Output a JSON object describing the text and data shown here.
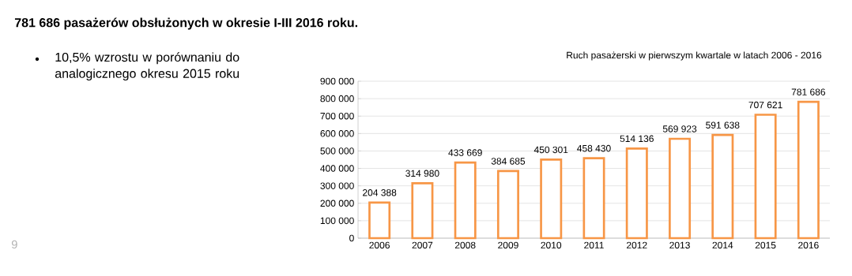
{
  "chart_data": {
    "type": "bar",
    "title": "781 686 pasażerów obsłużonych w okresie I-III 2016 roku.",
    "subtitle": "Ruch pasażerski w pierwszym kwartale w latach 2006 - 2016",
    "annotations": [
      "10,5% wzrostu w porównaniu do analogicznego okresu 2015 roku",
      "9"
    ],
    "categories": [
      "2006",
      "2007",
      "2008",
      "2009",
      "2010",
      "2011",
      "2012",
      "2013",
      "2014",
      "2015",
      "2016"
    ],
    "values": [
      204388,
      314980,
      433669,
      384685,
      450301,
      458430,
      514136,
      569923,
      591638,
      707621,
      781686
    ],
    "value_labels": [
      "204 388",
      "314 980",
      "433 669",
      "384 685",
      "450 301",
      "458 430",
      "514 136",
      "569 923",
      "591 638",
      "707 621",
      "781 686"
    ],
    "color": "#f79646",
    "ylim": [
      0,
      900000
    ],
    "yticks": [
      {
        "value": 0,
        "label": "0"
      },
      {
        "value": 100000,
        "label": "100 000"
      },
      {
        "value": 200000,
        "label": "200 000"
      },
      {
        "value": 300000,
        "label": "300 000"
      },
      {
        "value": 400000,
        "label": "400 000"
      },
      {
        "value": 500000,
        "label": "500 000"
      },
      {
        "value": 600000,
        "label": "600 000"
      },
      {
        "value": 700000,
        "label": "700 000"
      },
      {
        "value": 800000,
        "label": "800 000"
      },
      {
        "value": 900000,
        "label": "900 000"
      }
    ],
    "grid": "y"
  }
}
